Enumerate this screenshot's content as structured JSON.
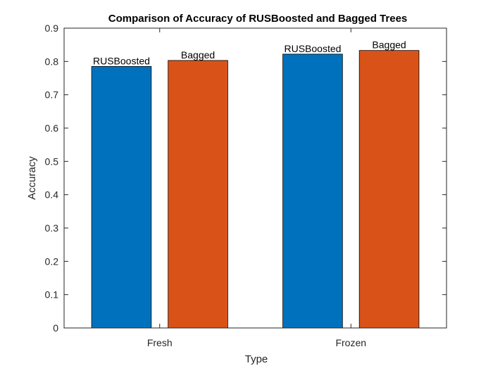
{
  "chart_data": {
    "type": "bar",
    "title": "Comparison of Accuracy of RUSBoosted and Bagged Trees",
    "xlabel": "Type",
    "ylabel": "Accuracy",
    "categories": [
      "Fresh",
      "Frozen"
    ],
    "ylim": [
      0,
      0.9
    ],
    "yticks": [
      0,
      0.1,
      0.2,
      0.3,
      0.4,
      0.5,
      0.6,
      0.7,
      0.8,
      0.9
    ],
    "grid": false,
    "series": [
      {
        "name": "RUSBoosted",
        "color": "#0072BD",
        "values": [
          0.785,
          0.822
        ]
      },
      {
        "name": "Bagged",
        "color": "#D95319",
        "values": [
          0.803,
          0.833
        ]
      }
    ]
  }
}
